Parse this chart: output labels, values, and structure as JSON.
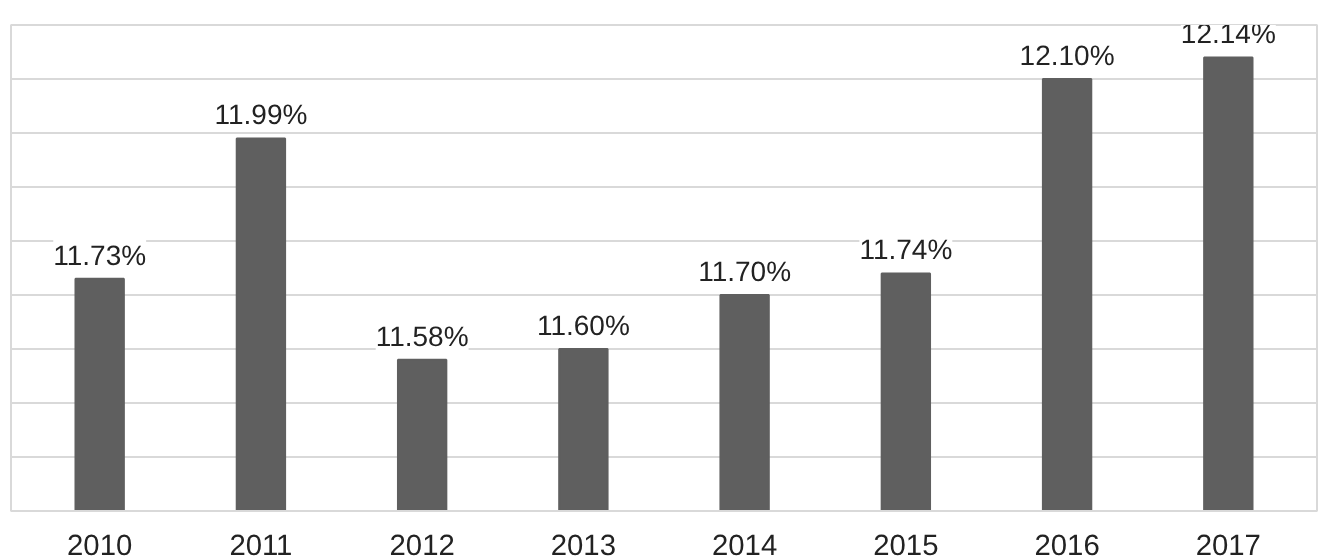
{
  "chart_data": {
    "type": "bar",
    "categories": [
      "2010",
      "2011",
      "2012",
      "2013",
      "2014",
      "2015",
      "2016",
      "2017"
    ],
    "values": [
      11.73,
      11.99,
      11.58,
      11.6,
      11.7,
      11.74,
      12.1,
      12.14
    ],
    "value_labels": [
      "11.73%",
      "11.99%",
      "11.58%",
      "11.60%",
      "11.70%",
      "11.74%",
      "12.10%",
      "12.14%"
    ],
    "color": "#5f5f5f",
    "ylim": [
      11.3,
      12.2
    ],
    "yticks": [
      {
        "value": 11.3,
        "label": null
      },
      {
        "value": 11.4,
        "label": null
      },
      {
        "value": 11.5,
        "label": null
      },
      {
        "value": 11.6,
        "label": null
      },
      {
        "value": 11.7,
        "label": null
      },
      {
        "value": 11.8,
        "label": null
      },
      {
        "value": 11.9,
        "label": null
      },
      {
        "value": 12.0,
        "label": null
      },
      {
        "value": 12.1,
        "label": null
      }
    ],
    "grid": "y",
    "tick_labels": "x"
  }
}
